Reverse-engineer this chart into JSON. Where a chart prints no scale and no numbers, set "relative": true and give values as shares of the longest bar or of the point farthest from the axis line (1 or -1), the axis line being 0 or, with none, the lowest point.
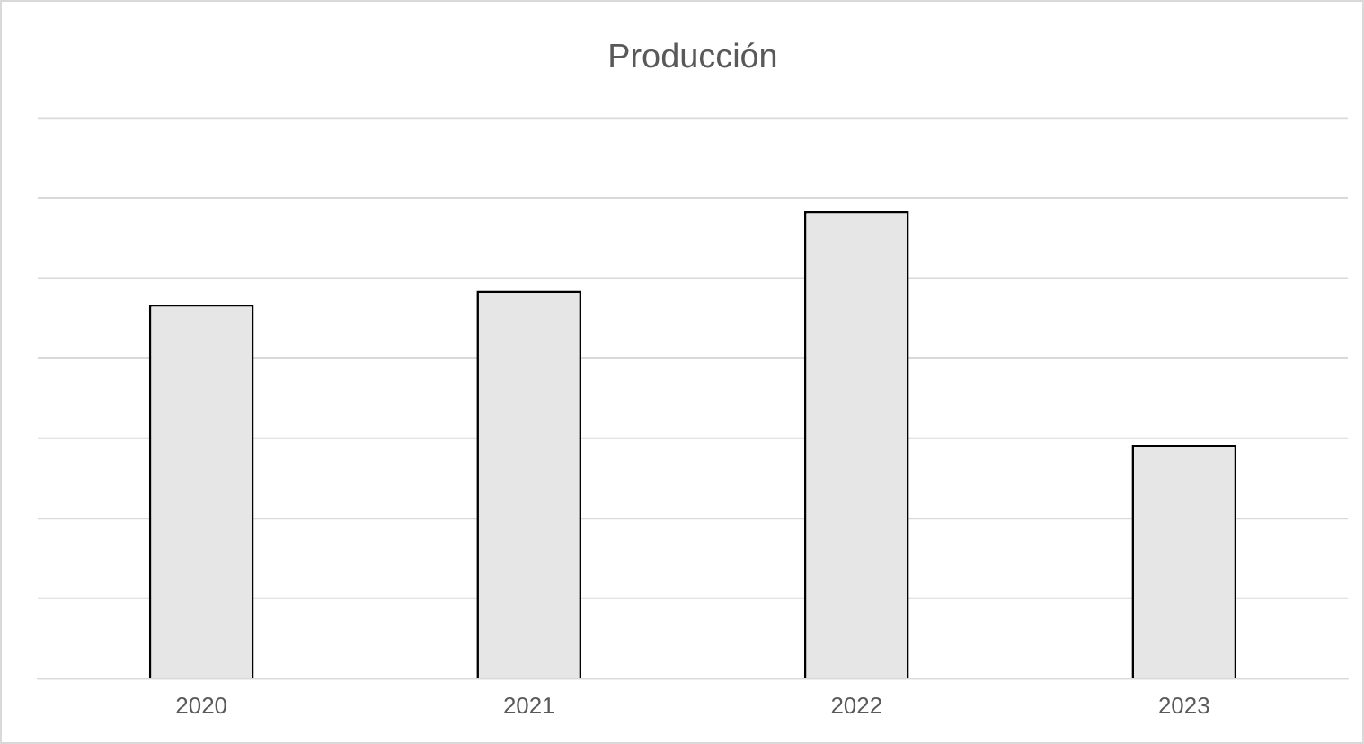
{
  "chart_data": {
    "type": "bar",
    "title": "Producción",
    "categories": [
      "2020",
      "2021",
      "2022",
      "2023"
    ],
    "relative": true,
    "values": [
      0.8,
      0.83,
      1,
      0.5
    ],
    "color": "#e7e6e6",
    "grid": "y",
    "legend": false
  }
}
